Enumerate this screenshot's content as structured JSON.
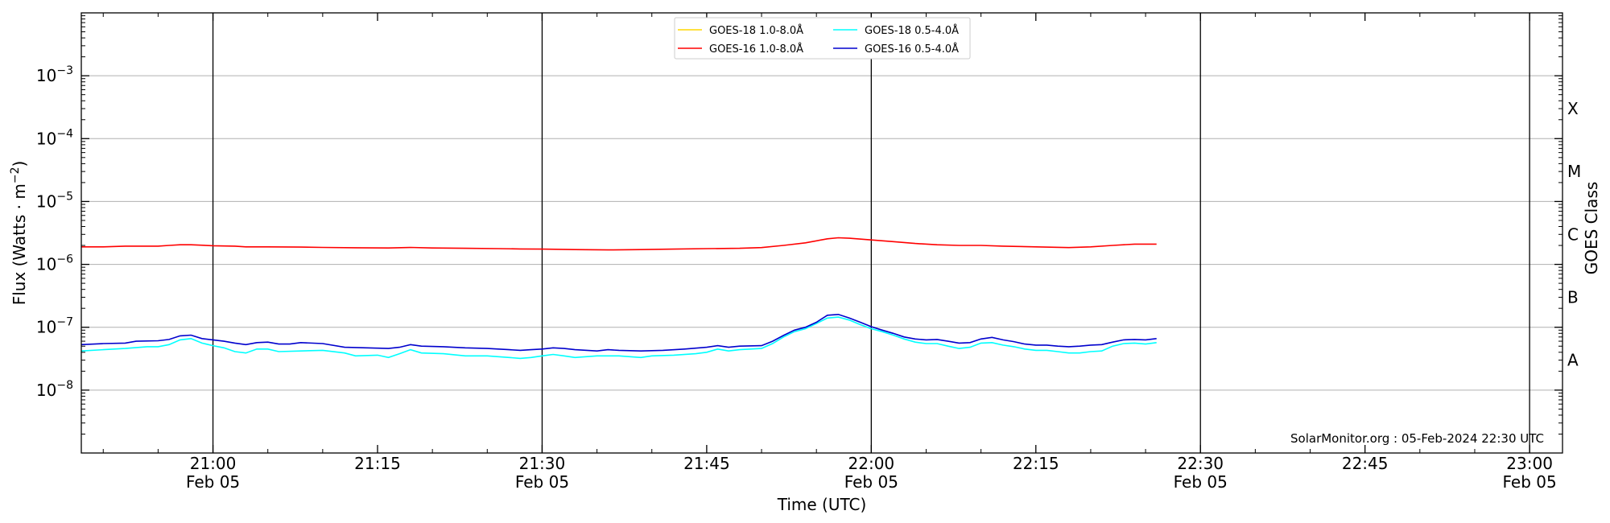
{
  "chart_data": {
    "type": "line",
    "title": "",
    "xlabel": "Time (UTC)",
    "ylabel": "Flux (Watts · m⁻²)",
    "y2label": "GOES Class",
    "yscale": "log",
    "ylim": [
      1e-09,
      0.01
    ],
    "xlim": [
      "20:48",
      "23:03"
    ],
    "grid": "horizontal at decades",
    "legend_position": "top-center",
    "credit": "SolarMonitor.org : 05-Feb-2024 22:30 UTC",
    "x_ticks": [
      {
        "time": "21:00",
        "label": "21:00",
        "date": "Feb 05"
      },
      {
        "time": "21:15",
        "label": "21:15",
        "date": ""
      },
      {
        "time": "21:30",
        "label": "21:30",
        "date": "Feb 05"
      },
      {
        "time": "21:45",
        "label": "21:45",
        "date": ""
      },
      {
        "time": "22:00",
        "label": "22:00",
        "date": "Feb 05"
      },
      {
        "time": "22:15",
        "label": "22:15",
        "date": ""
      },
      {
        "time": "22:30",
        "label": "22:30",
        "date": "Feb 05"
      },
      {
        "time": "22:45",
        "label": "22:45",
        "date": ""
      },
      {
        "time": "23:00",
        "label": "23:00",
        "date": "Feb 05"
      }
    ],
    "vertical_lines": [
      "21:00",
      "21:30",
      "22:00",
      "22:30",
      "23:00"
    ],
    "y_ticks": [
      {
        "value": 1e-08,
        "exp": "−8"
      },
      {
        "value": 1e-07,
        "exp": "−7"
      },
      {
        "value": 1e-06,
        "exp": "−6"
      },
      {
        "value": 1e-05,
        "exp": "−5"
      },
      {
        "value": 0.0001,
        "exp": "−4"
      },
      {
        "value": 0.001,
        "exp": "−3"
      }
    ],
    "goes_classes": [
      {
        "label": "A",
        "value": 3e-08
      },
      {
        "label": "B",
        "value": 3e-07
      },
      {
        "label": "C",
        "value": 3e-06
      },
      {
        "label": "M",
        "value": 3e-05
      },
      {
        "label": "X",
        "value": 0.0003
      }
    ],
    "series": [
      {
        "name": "GOES-18 1.0-8.0Å",
        "color": "#ffd700",
        "points": []
      },
      {
        "name": "GOES-18 0.5-4.0Å",
        "color": "#00ffff",
        "points": [
          [
            "20:48",
            4.2e-08
          ],
          [
            "20:50",
            4.4e-08
          ],
          [
            "20:52",
            4.6e-08
          ],
          [
            "20:54",
            4.9e-08
          ],
          [
            "20:55",
            4.9e-08
          ],
          [
            "20:56",
            5.3e-08
          ],
          [
            "20:57",
            6.3e-08
          ],
          [
            "20:58",
            6.6e-08
          ],
          [
            "20:59",
            5.6e-08
          ],
          [
            "21:00",
            5.1e-08
          ],
          [
            "21:01",
            4.7e-08
          ],
          [
            "21:02",
            4.1e-08
          ],
          [
            "21:03",
            3.9e-08
          ],
          [
            "21:04",
            4.5e-08
          ],
          [
            "21:05",
            4.5e-08
          ],
          [
            "21:06",
            4.1e-08
          ],
          [
            "21:08",
            4.2e-08
          ],
          [
            "21:10",
            4.3e-08
          ],
          [
            "21:12",
            3.9e-08
          ],
          [
            "21:13",
            3.5e-08
          ],
          [
            "21:15",
            3.6e-08
          ],
          [
            "21:16",
            3.3e-08
          ],
          [
            "21:17",
            3.8e-08
          ],
          [
            "21:18",
            4.4e-08
          ],
          [
            "21:19",
            3.9e-08
          ],
          [
            "21:21",
            3.8e-08
          ],
          [
            "21:23",
            3.5e-08
          ],
          [
            "21:25",
            3.5e-08
          ],
          [
            "21:27",
            3.3e-08
          ],
          [
            "21:28",
            3.2e-08
          ],
          [
            "21:29",
            3.3e-08
          ],
          [
            "21:30",
            3.5e-08
          ],
          [
            "21:31",
            3.7e-08
          ],
          [
            "21:32",
            3.5e-08
          ],
          [
            "21:33",
            3.3e-08
          ],
          [
            "21:35",
            3.5e-08
          ],
          [
            "21:37",
            3.5e-08
          ],
          [
            "21:39",
            3.3e-08
          ],
          [
            "21:40",
            3.5e-08
          ],
          [
            "21:42",
            3.6e-08
          ],
          [
            "21:44",
            3.8e-08
          ],
          [
            "21:45",
            4e-08
          ],
          [
            "21:46",
            4.5e-08
          ],
          [
            "21:47",
            4.2e-08
          ],
          [
            "21:48",
            4.4e-08
          ],
          [
            "21:50",
            4.6e-08
          ],
          [
            "21:51",
            5.5e-08
          ],
          [
            "21:52",
            7e-08
          ],
          [
            "21:53",
            8.5e-08
          ],
          [
            "21:54",
            9.5e-08
          ],
          [
            "21:55",
            1.15e-07
          ],
          [
            "21:56",
            1.4e-07
          ],
          [
            "21:57",
            1.45e-07
          ],
          [
            "21:58",
            1.3e-07
          ],
          [
            "21:59",
            1.1e-07
          ],
          [
            "22:00",
            9.5e-08
          ],
          [
            "22:01",
            8.5e-08
          ],
          [
            "22:02",
            7.5e-08
          ],
          [
            "22:03",
            6.5e-08
          ],
          [
            "22:04",
            5.8e-08
          ],
          [
            "22:05",
            5.5e-08
          ],
          [
            "22:06",
            5.5e-08
          ],
          [
            "22:07",
            5e-08
          ],
          [
            "22:08",
            4.6e-08
          ],
          [
            "22:09",
            4.8e-08
          ],
          [
            "22:10",
            5.6e-08
          ],
          [
            "22:11",
            5.7e-08
          ],
          [
            "22:12",
            5.2e-08
          ],
          [
            "22:13",
            4.9e-08
          ],
          [
            "22:14",
            4.5e-08
          ],
          [
            "22:15",
            4.3e-08
          ],
          [
            "22:16",
            4.3e-08
          ],
          [
            "22:17",
            4.1e-08
          ],
          [
            "22:18",
            3.9e-08
          ],
          [
            "22:19",
            3.9e-08
          ],
          [
            "22:20",
            4.1e-08
          ],
          [
            "22:21",
            4.2e-08
          ],
          [
            "22:22",
            5e-08
          ],
          [
            "22:23",
            5.5e-08
          ],
          [
            "22:24",
            5.6e-08
          ],
          [
            "22:25",
            5.4e-08
          ],
          [
            "22:26",
            5.7e-08
          ]
        ]
      },
      {
        "name": "GOES-16 1.0-8.0Å",
        "color": "#ff0000",
        "points": [
          [
            "20:48",
            1.9e-06
          ],
          [
            "20:50",
            1.9e-06
          ],
          [
            "20:52",
            1.95e-06
          ],
          [
            "20:55",
            1.95e-06
          ],
          [
            "20:56",
            2e-06
          ],
          [
            "20:57",
            2.05e-06
          ],
          [
            "20:58",
            2.05e-06
          ],
          [
            "21:00",
            1.98e-06
          ],
          [
            "21:02",
            1.95e-06
          ],
          [
            "21:03",
            1.9e-06
          ],
          [
            "21:05",
            1.9e-06
          ],
          [
            "21:08",
            1.88e-06
          ],
          [
            "21:10",
            1.86e-06
          ],
          [
            "21:13",
            1.84e-06
          ],
          [
            "21:16",
            1.82e-06
          ],
          [
            "21:18",
            1.86e-06
          ],
          [
            "21:20",
            1.82e-06
          ],
          [
            "21:23",
            1.8e-06
          ],
          [
            "21:26",
            1.78e-06
          ],
          [
            "21:28",
            1.76e-06
          ],
          [
            "21:30",
            1.75e-06
          ],
          [
            "21:33",
            1.72e-06
          ],
          [
            "21:36",
            1.7e-06
          ],
          [
            "21:39",
            1.72e-06
          ],
          [
            "21:42",
            1.75e-06
          ],
          [
            "21:45",
            1.78e-06
          ],
          [
            "21:48",
            1.8e-06
          ],
          [
            "21:50",
            1.85e-06
          ],
          [
            "21:52",
            2e-06
          ],
          [
            "21:54",
            2.2e-06
          ],
          [
            "21:56",
            2.55e-06
          ],
          [
            "21:57",
            2.65e-06
          ],
          [
            "21:58",
            2.6e-06
          ],
          [
            "22:00",
            2.45e-06
          ],
          [
            "22:02",
            2.3e-06
          ],
          [
            "22:04",
            2.15e-06
          ],
          [
            "22:06",
            2.05e-06
          ],
          [
            "22:08",
            2e-06
          ],
          [
            "22:10",
            2e-06
          ],
          [
            "22:12",
            1.95e-06
          ],
          [
            "22:15",
            1.9e-06
          ],
          [
            "22:18",
            1.85e-06
          ],
          [
            "22:20",
            1.9e-06
          ],
          [
            "22:22",
            2e-06
          ],
          [
            "22:24",
            2.1e-06
          ],
          [
            "22:26",
            2.1e-06
          ]
        ]
      },
      {
        "name": "GOES-16 0.5-4.0Å",
        "color": "#0000cd",
        "points": [
          [
            "20:48",
            5.3e-08
          ],
          [
            "20:50",
            5.5e-08
          ],
          [
            "20:52",
            5.6e-08
          ],
          [
            "20:53",
            6e-08
          ],
          [
            "20:55",
            6.1e-08
          ],
          [
            "20:56",
            6.4e-08
          ],
          [
            "20:57",
            7.3e-08
          ],
          [
            "20:58",
            7.5e-08
          ],
          [
            "20:59",
            6.6e-08
          ],
          [
            "21:00",
            6.3e-08
          ],
          [
            "21:01",
            6e-08
          ],
          [
            "21:02",
            5.6e-08
          ],
          [
            "21:03",
            5.3e-08
          ],
          [
            "21:04",
            5.7e-08
          ],
          [
            "21:05",
            5.8e-08
          ],
          [
            "21:06",
            5.4e-08
          ],
          [
            "21:07",
            5.4e-08
          ],
          [
            "21:08",
            5.7e-08
          ],
          [
            "21:10",
            5.5e-08
          ],
          [
            "21:12",
            4.8e-08
          ],
          [
            "21:14",
            4.7e-08
          ],
          [
            "21:16",
            4.6e-08
          ],
          [
            "21:17",
            4.8e-08
          ],
          [
            "21:18",
            5.3e-08
          ],
          [
            "21:19",
            5e-08
          ],
          [
            "21:21",
            4.9e-08
          ],
          [
            "21:23",
            4.7e-08
          ],
          [
            "21:25",
            4.6e-08
          ],
          [
            "21:27",
            4.4e-08
          ],
          [
            "21:28",
            4.3e-08
          ],
          [
            "21:29",
            4.4e-08
          ],
          [
            "21:30",
            4.5e-08
          ],
          [
            "21:31",
            4.7e-08
          ],
          [
            "21:32",
            4.6e-08
          ],
          [
            "21:33",
            4.4e-08
          ],
          [
            "21:35",
            4.2e-08
          ],
          [
            "21:36",
            4.4e-08
          ],
          [
            "21:37",
            4.3e-08
          ],
          [
            "21:39",
            4.2e-08
          ],
          [
            "21:41",
            4.3e-08
          ],
          [
            "21:43",
            4.5e-08
          ],
          [
            "21:45",
            4.8e-08
          ],
          [
            "21:46",
            5.1e-08
          ],
          [
            "21:47",
            4.8e-08
          ],
          [
            "21:48",
            5e-08
          ],
          [
            "21:50",
            5.1e-08
          ],
          [
            "21:51",
            6e-08
          ],
          [
            "21:52",
            7.4e-08
          ],
          [
            "21:53",
            9e-08
          ],
          [
            "21:54",
            1e-07
          ],
          [
            "21:55",
            1.2e-07
          ],
          [
            "21:56",
            1.55e-07
          ],
          [
            "21:57",
            1.6e-07
          ],
          [
            "21:58",
            1.4e-07
          ],
          [
            "21:59",
            1.2e-07
          ],
          [
            "22:00",
            1.02e-07
          ],
          [
            "22:01",
            9e-08
          ],
          [
            "22:02",
            8e-08
          ],
          [
            "22:03",
            7e-08
          ],
          [
            "22:04",
            6.5e-08
          ],
          [
            "22:05",
            6.3e-08
          ],
          [
            "22:06",
            6.4e-08
          ],
          [
            "22:07",
            6e-08
          ],
          [
            "22:08",
            5.6e-08
          ],
          [
            "22:09",
            5.7e-08
          ],
          [
            "22:10",
            6.5e-08
          ],
          [
            "22:11",
            6.9e-08
          ],
          [
            "22:12",
            6.3e-08
          ],
          [
            "22:13",
            5.9e-08
          ],
          [
            "22:14",
            5.4e-08
          ],
          [
            "22:15",
            5.2e-08
          ],
          [
            "22:16",
            5.2e-08
          ],
          [
            "22:17",
            5e-08
          ],
          [
            "22:18",
            4.9e-08
          ],
          [
            "22:19",
            5e-08
          ],
          [
            "22:20",
            5.2e-08
          ],
          [
            "22:21",
            5.3e-08
          ],
          [
            "22:22",
            5.8e-08
          ],
          [
            "22:23",
            6.3e-08
          ],
          [
            "22:24",
            6.4e-08
          ],
          [
            "22:25",
            6.3e-08
          ],
          [
            "22:26",
            6.6e-08
          ]
        ]
      }
    ]
  }
}
